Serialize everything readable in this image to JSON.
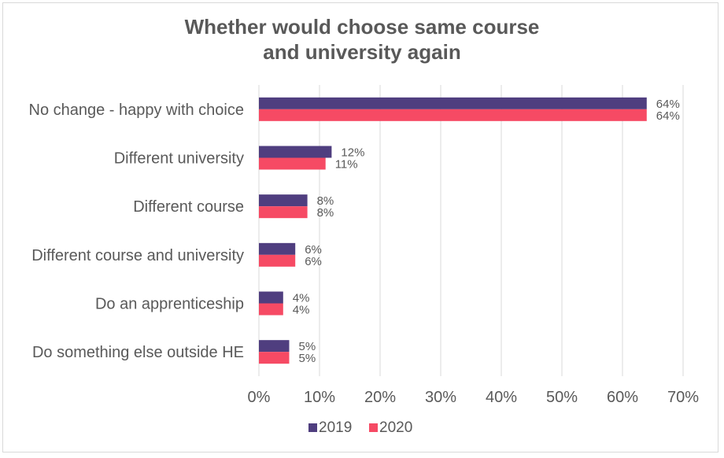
{
  "chart_data": {
    "type": "bar",
    "orientation": "horizontal",
    "title": "Whether would choose same course and university again",
    "title_lines": [
      "Whether would choose same course",
      "and university again"
    ],
    "categories": [
      "No change - happy with choice",
      "Different university",
      "Different course",
      "Different course and university",
      "Do an apprenticeship",
      "Do something else outside HE"
    ],
    "series": [
      {
        "name": "2019",
        "color": "#4f3e7f",
        "values": [
          64,
          12,
          8,
          6,
          4,
          5
        ]
      },
      {
        "name": "2020",
        "color": "#f64a64",
        "values": [
          64,
          11,
          8,
          6,
          4,
          5
        ]
      }
    ],
    "xlim": [
      0,
      70
    ],
    "xticks": [
      0,
      10,
      20,
      30,
      40,
      50,
      60,
      70
    ],
    "tick_suffix": "%",
    "data_label_suffix": "%",
    "grid": true,
    "legend_position": "bottom"
  }
}
